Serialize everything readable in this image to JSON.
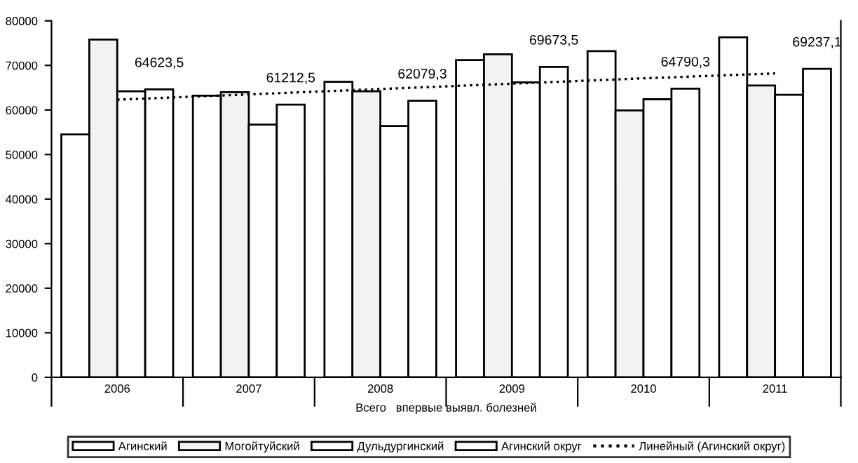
{
  "chart_data": {
    "type": "bar",
    "xlabel": "Всего   впервые выявл. болезней",
    "categories": [
      "2006",
      "2007",
      "2008",
      "2009",
      "2010",
      "2011"
    ],
    "series": [
      {
        "name": "Агинский",
        "color": "#ffffff",
        "values": [
          54500,
          63200,
          66300,
          71200,
          73200,
          76300
        ]
      },
      {
        "name": "Могойтуйский",
        "color": "#f2f2f2",
        "values": [
          75800,
          64000,
          64200,
          72500,
          59900,
          65500
        ]
      },
      {
        "name": "Дульдургинский",
        "color": "#ffffff",
        "values": [
          64200,
          56700,
          56400,
          66200,
          62400,
          63400
        ]
      },
      {
        "name": "Агинский округ",
        "color": "#ffffff",
        "values": [
          64623.5,
          61212.5,
          62079.3,
          69673.5,
          64790.3,
          69237.1
        ],
        "value_labels": [
          "64623,5",
          "61212,5",
          "62079,3",
          "69673,5",
          "64790,3",
          "69237,1"
        ]
      },
      {
        "name": "Линейный (Агинский округ)",
        "type": "line",
        "color": "#000000",
        "line_style": "dotted",
        "values": [
          62300,
          63500,
          64700,
          65900,
          67100,
          68200
        ]
      }
    ],
    "ylim": [
      0,
      80000
    ],
    "yticks": [
      0,
      10000,
      20000,
      30000,
      40000,
      50000,
      60000,
      70000,
      80000
    ],
    "grid": false,
    "legend": "bottom"
  }
}
